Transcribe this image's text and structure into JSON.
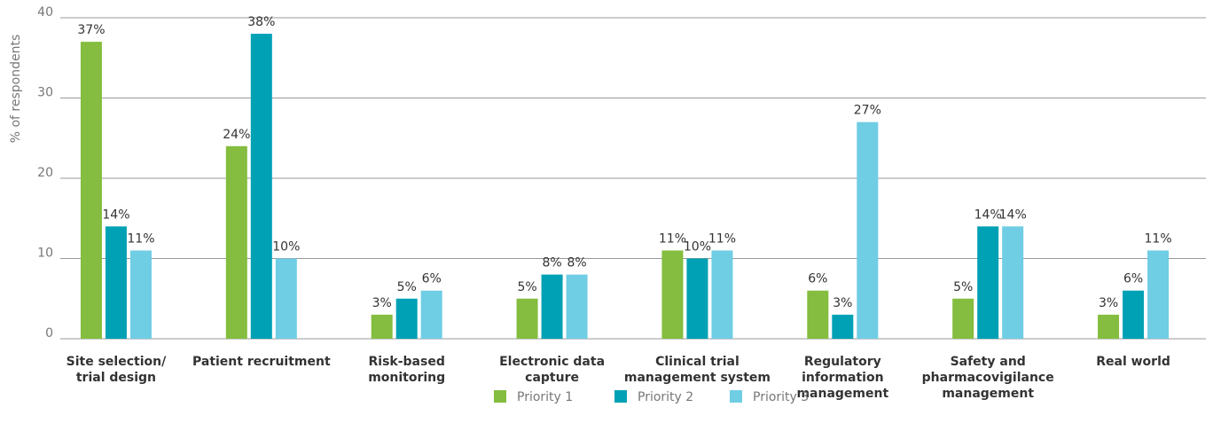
{
  "chart_data": {
    "type": "bar",
    "y_label": "% of respondents",
    "categories": [
      "Site selection/\ntrial design",
      "Patient recruitment",
      "Risk-based\nmonitoring",
      "Electronic data\ncapture",
      "Clinical trial\nmanagement system",
      "Regulatory\ninformation\nmanagement",
      "Safety and\npharmacovigilance\nmanagement",
      "Real world"
    ],
    "series": [
      {
        "name": "Priority 1",
        "color": "#84bd3f",
        "values": [
          37,
          24,
          3,
          5,
          11,
          6,
          5,
          3
        ],
        "value_labels": [
          "37%",
          "24%",
          "3%",
          "5%",
          "11%",
          "6%",
          "5%",
          "3%"
        ]
      },
      {
        "name": "Priority 2",
        "color": "#00a1b5",
        "values": [
          14,
          38,
          5,
          8,
          10,
          3,
          14,
          6
        ],
        "value_labels": [
          "14%",
          "38%",
          "5%",
          "8%",
          "10%",
          "3%",
          "14%",
          "6%"
        ]
      },
      {
        "name": "Priority 3",
        "color": "#6fcde4",
        "values": [
          11,
          10,
          6,
          8,
          11,
          27,
          14,
          11
        ],
        "value_labels": [
          "11%",
          "10%",
          "6%",
          "8%",
          "11%",
          "27%",
          "14%",
          "11%"
        ]
      }
    ],
    "ylim": [
      0,
      40
    ],
    "yticks": [
      0,
      10,
      20,
      30,
      40
    ],
    "grid": true,
    "legend": "bottom"
  }
}
